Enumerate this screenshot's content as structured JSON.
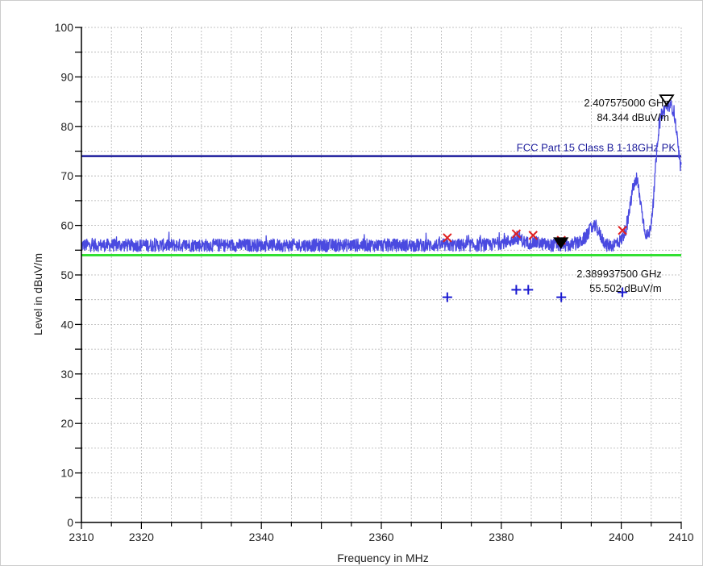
{
  "chart_data": {
    "type": "line",
    "xlabel": "Frequency in MHz",
    "ylabel": "Level in dBuV/m",
    "xlim": [
      2310,
      2410
    ],
    "ylim": [
      0,
      100
    ],
    "x_major_ticks": [
      2310,
      2320,
      2340,
      2360,
      2380,
      2400,
      2410
    ],
    "y_major_ticks": [
      0,
      10,
      20,
      30,
      40,
      50,
      60,
      70,
      80,
      90,
      100
    ],
    "x_grid_step": 5,
    "y_grid_step": 5,
    "grid": true,
    "colors": {
      "trace": "#4a4ae0",
      "limit_pk": "#1c1c9c",
      "limit_av": "#33e033",
      "x_marker": "#e02020",
      "plus_marker": "#1a1ad0",
      "grid": "#b0b0b0"
    },
    "series": [
      {
        "role": "trace",
        "style": "noisy",
        "x": [
          2310,
          2370,
          2378,
          2382,
          2383,
          2384,
          2386,
          2388,
          2390,
          2391.5,
          2393,
          2394,
          2395,
          2395.8,
          2396.5,
          2397.5,
          2398.5,
          2400,
          2401,
          2402,
          2402.7,
          2403.3,
          2403.8,
          2404.3,
          2404.8,
          2405.3,
          2405.8,
          2406.2,
          2406.6,
          2407,
          2407.5,
          2408,
          2408.4,
          2408.8,
          2409.2,
          2409.6,
          2410
        ],
        "y": [
          56,
          56,
          56,
          57,
          57.5,
          56.5,
          56.5,
          56,
          56,
          56,
          56.5,
          57.5,
          59.5,
          59.8,
          58,
          56,
          56,
          57,
          60,
          68,
          69,
          64,
          60,
          57.5,
          59,
          64,
          73,
          79,
          82,
          83,
          84,
          84.3,
          84,
          83,
          79,
          74,
          71
        ]
      },
      {
        "name": "FCC Part 15 Class B 1-18GHz PK",
        "role": "limit",
        "x": [
          2310,
          2410
        ],
        "y": [
          74,
          74
        ]
      },
      {
        "role": "limit",
        "x": [
          2310,
          2410
        ],
        "y": [
          54,
          54
        ]
      }
    ],
    "x_markers": [
      {
        "x": 2371,
        "y": 57.5
      },
      {
        "x": 2382.5,
        "y": 58.3
      },
      {
        "x": 2385.3,
        "y": 58
      },
      {
        "x": 2390,
        "y": 57
      },
      {
        "x": 2400.2,
        "y": 59
      }
    ],
    "plus_markers": [
      {
        "x": 2371,
        "y": 45.5
      },
      {
        "x": 2382.5,
        "y": 47
      },
      {
        "x": 2384.5,
        "y": 47
      },
      {
        "x": 2390,
        "y": 45.5
      },
      {
        "x": 2400.2,
        "y": 46.5
      }
    ],
    "peak_markers": [
      {
        "x": 2407.575,
        "y": 84.344,
        "filled": false,
        "line1": "2.407575000 GHz",
        "line2": "84.344 dBuV/m"
      },
      {
        "x": 2389.9375,
        "y": 55.502,
        "filled": true,
        "line1": "2.389937500 GHz",
        "line2": "55.502 dBuV/m"
      }
    ]
  }
}
